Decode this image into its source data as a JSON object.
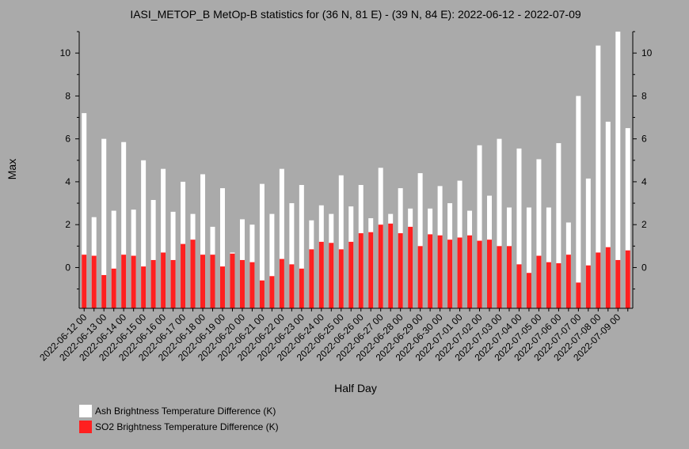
{
  "chart_data": {
    "type": "bar",
    "title": "IASI_METOP_B MetOp-B statistics for (36 N, 81 E) - (39 N, 84 E): 2022-06-12 - 2022-07-09",
    "xlabel": "Half Day",
    "ylabel": "Max",
    "ylim": [
      -1.9,
      11
    ],
    "yticks": [
      0,
      2,
      4,
      6,
      8,
      10
    ],
    "grid": false,
    "legend_position": "bottom-left",
    "tick_labels": [
      "2022-06-12 00",
      "2022-06-13 00",
      "2022-06-14 00",
      "2022-06-15 00",
      "2022-06-16 00",
      "2022-06-17 00",
      "2022-06-18 00",
      "2022-06-19 00",
      "2022-06-20 00",
      "2022-06-21 00",
      "2022-06-22 00",
      "2022-06-23 00",
      "2022-06-24 00",
      "2022-06-25 00",
      "2022-06-26 00",
      "2022-06-27 00",
      "2022-06-28 00",
      "2022-06-29 00",
      "2022-06-30 00",
      "2022-07-01 00",
      "2022-07-02 00",
      "2022-07-03 00",
      "2022-07-04 00",
      "2022-07-05 00",
      "2022-07-06 00",
      "2022-07-07 00",
      "2022-07-08 00",
      "2022-07-09 00"
    ],
    "series": [
      {
        "name": "Ash Brightness Temperature Difference (K)",
        "color": "#ffffff",
        "values": [
          7.2,
          2.35,
          6.0,
          2.65,
          5.85,
          2.7,
          5.0,
          3.15,
          4.6,
          2.6,
          4.0,
          2.5,
          4.35,
          1.9,
          3.7,
          0.7,
          2.25,
          2.0,
          3.9,
          2.5,
          4.6,
          3.0,
          3.85,
          2.2,
          2.9,
          2.5,
          4.3,
          2.85,
          3.85,
          2.3,
          4.65,
          2.5,
          3.7,
          2.75,
          4.4,
          2.75,
          3.8,
          3.0,
          4.05,
          2.65,
          5.7,
          3.35,
          6.0,
          2.8,
          5.55,
          2.8,
          5.05,
          2.8,
          5.8,
          2.1,
          8.0,
          4.15,
          10.35,
          6.8,
          11.0,
          6.5
        ]
      },
      {
        "name": "SO2 Brightness Temperature Difference (K)",
        "color": "#ff2020",
        "values": [
          0.6,
          0.55,
          -0.35,
          -0.05,
          0.6,
          0.55,
          0.05,
          0.35,
          0.7,
          0.35,
          1.1,
          1.3,
          0.6,
          0.6,
          0.05,
          0.65,
          0.35,
          0.25,
          -0.6,
          -0.4,
          0.4,
          0.15,
          -0.05,
          0.85,
          1.2,
          1.15,
          0.85,
          1.2,
          1.6,
          1.65,
          2.0,
          2.05,
          1.6,
          1.9,
          1.0,
          1.55,
          1.5,
          1.3,
          1.4,
          1.5,
          1.25,
          1.3,
          1.0,
          1.0,
          0.15,
          -0.25,
          0.55,
          0.25,
          0.2,
          0.6,
          -0.7,
          0.1,
          0.7,
          0.95,
          0.35,
          0.8
        ]
      }
    ]
  }
}
